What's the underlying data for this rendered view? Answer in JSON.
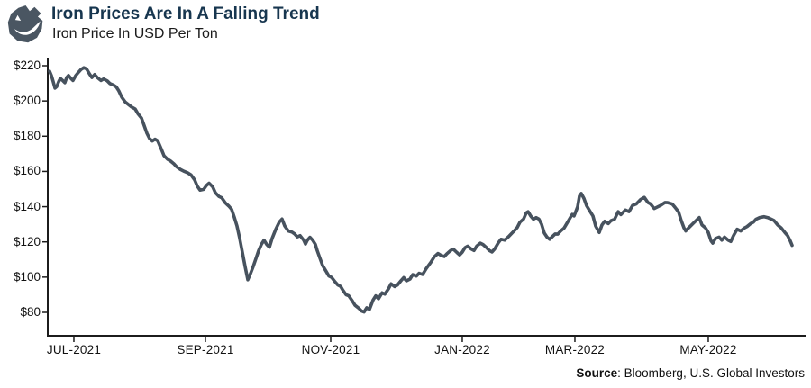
{
  "header": {
    "title": "Iron Prices Are In A Falling Trend",
    "subtitle": "Iron Price In USD Per Ton",
    "icon": "ore-rock-icon"
  },
  "source": {
    "label": "Source",
    "text": ": Bloomberg, U.S. Global Investors"
  },
  "colors": {
    "title_navy": "#17364f",
    "line_slate": "#47525e",
    "axis_black": "#1c1c1c",
    "icon_slate": "#4a5662"
  },
  "chart_data": {
    "type": "line",
    "title": "Iron Prices Are In A Falling Trend",
    "subtitle": "Iron Price In USD Per Ton",
    "ylabel": "Iron Price In USD Per Ton",
    "ylim": [
      80,
      220
    ],
    "grid": false,
    "legend": false,
    "y_ticks": [
      {
        "label": "$220",
        "value": 220
      },
      {
        "label": "$200",
        "value": 200
      },
      {
        "label": "$180",
        "value": 180
      },
      {
        "label": "$160",
        "value": 160
      },
      {
        "label": "$140",
        "value": 140
      },
      {
        "label": "$120",
        "value": 120
      },
      {
        "label": "$100",
        "value": 100
      },
      {
        "label": "$80",
        "value": 80
      }
    ],
    "x_ticks": [
      {
        "label": "JUL-2021",
        "t": 0.0345
      },
      {
        "label": "SEP-2021",
        "t": 0.2083
      },
      {
        "label": "NOV-2021",
        "t": 0.3738
      },
      {
        "label": "JAN-2022",
        "t": 0.5476
      },
      {
        "label": "MAR-2022",
        "t": 0.6964
      },
      {
        "label": "MAY-2022",
        "t": 0.8726
      }
    ],
    "series": [
      {
        "name": "Iron price (USD per ton)",
        "color": "#47525e",
        "points": [
          [
            0.0024,
            216.9
          ],
          [
            0.0048,
            214.5
          ],
          [
            0.0071,
            211
          ],
          [
            0.0095,
            207.3
          ],
          [
            0.0119,
            208.2
          ],
          [
            0.0143,
            210.8
          ],
          [
            0.0167,
            212.8
          ],
          [
            0.0202,
            211.4
          ],
          [
            0.0226,
            210.4
          ],
          [
            0.025,
            213.3
          ],
          [
            0.0274,
            214.5
          ],
          [
            0.031,
            212.6
          ],
          [
            0.0333,
            211.6
          ],
          [
            0.0369,
            214.4
          ],
          [
            0.0405,
            216.2
          ],
          [
            0.044,
            217.9
          ],
          [
            0.0476,
            218.9
          ],
          [
            0.0512,
            218.2
          ],
          [
            0.0548,
            215.6
          ],
          [
            0.0583,
            213.3
          ],
          [
            0.0619,
            215
          ],
          [
            0.0655,
            213.3
          ],
          [
            0.0702,
            211.6
          ],
          [
            0.0738,
            212.5
          ],
          [
            0.0786,
            211.4
          ],
          [
            0.0821,
            209.9
          ],
          [
            0.0869,
            209
          ],
          [
            0.0905,
            208
          ],
          [
            0.094,
            205.6
          ],
          [
            0.0976,
            202.2
          ],
          [
            0.1024,
            199.4
          ],
          [
            0.106,
            198.2
          ],
          [
            0.1107,
            196.6
          ],
          [
            0.1155,
            195.4
          ],
          [
            0.119,
            192.8
          ],
          [
            0.1238,
            190.3
          ],
          [
            0.1274,
            186
          ],
          [
            0.131,
            181.7
          ],
          [
            0.1345,
            178.6
          ],
          [
            0.1381,
            177.3
          ],
          [
            0.1417,
            178.3
          ],
          [
            0.1452,
            177.4
          ],
          [
            0.15,
            172.7
          ],
          [
            0.1536,
            168.9
          ],
          [
            0.1583,
            166.9
          ],
          [
            0.1619,
            166
          ],
          [
            0.1667,
            164.3
          ],
          [
            0.1702,
            162.6
          ],
          [
            0.175,
            161.2
          ],
          [
            0.1798,
            160.1
          ],
          [
            0.1845,
            159.3
          ],
          [
            0.1893,
            158
          ],
          [
            0.194,
            155.2
          ],
          [
            0.1976,
            151.6
          ],
          [
            0.2012,
            149.4
          ],
          [
            0.206,
            149.8
          ],
          [
            0.2095,
            152
          ],
          [
            0.2131,
            153.3
          ],
          [
            0.2179,
            151.3
          ],
          [
            0.2214,
            147.9
          ],
          [
            0.2262,
            145.8
          ],
          [
            0.2298,
            145.1
          ],
          [
            0.2345,
            142.2
          ],
          [
            0.2393,
            140.3
          ],
          [
            0.2429,
            138.5
          ],
          [
            0.2464,
            134
          ],
          [
            0.25,
            129
          ],
          [
            0.2536,
            122
          ],
          [
            0.2571,
            114
          ],
          [
            0.2607,
            106
          ],
          [
            0.2643,
            98.5
          ],
          [
            0.2679,
            102
          ],
          [
            0.2714,
            106
          ],
          [
            0.275,
            110.5
          ],
          [
            0.2786,
            115
          ],
          [
            0.2821,
            118.5
          ],
          [
            0.2857,
            121
          ],
          [
            0.2893,
            118.5
          ],
          [
            0.2929,
            117
          ],
          [
            0.2964,
            122
          ],
          [
            0.3012,
            127.1
          ],
          [
            0.306,
            131.3
          ],
          [
            0.3095,
            133
          ],
          [
            0.3131,
            129
          ],
          [
            0.3179,
            126.2
          ],
          [
            0.3226,
            125.6
          ],
          [
            0.3262,
            124.5
          ],
          [
            0.3298,
            122.8
          ],
          [
            0.3333,
            123.6
          ],
          [
            0.3381,
            121
          ],
          [
            0.3405,
            118.8
          ],
          [
            0.3429,
            120.9
          ],
          [
            0.3464,
            122.6
          ],
          [
            0.35,
            121
          ],
          [
            0.3536,
            118.5
          ],
          [
            0.356,
            115.1
          ],
          [
            0.3595,
            110.8
          ],
          [
            0.3631,
            106.6
          ],
          [
            0.3679,
            103.2
          ],
          [
            0.3714,
            100.6
          ],
          [
            0.375,
            99.8
          ],
          [
            0.3798,
            97.2
          ],
          [
            0.3833,
            95.5
          ],
          [
            0.3869,
            94.7
          ],
          [
            0.3893,
            93
          ],
          [
            0.394,
            90
          ],
          [
            0.3976,
            89.4
          ],
          [
            0.4024,
            86.5
          ],
          [
            0.406,
            84
          ],
          [
            0.4107,
            82.4
          ],
          [
            0.4143,
            80.8
          ],
          [
            0.4179,
            80.2
          ],
          [
            0.4214,
            82.6
          ],
          [
            0.425,
            81.7
          ],
          [
            0.4298,
            87
          ],
          [
            0.4333,
            89.4
          ],
          [
            0.4369,
            87.7
          ],
          [
            0.4417,
            91.1
          ],
          [
            0.4452,
            90.3
          ],
          [
            0.45,
            93.3
          ],
          [
            0.4536,
            96.2
          ],
          [
            0.4583,
            94.6
          ],
          [
            0.4619,
            95.5
          ],
          [
            0.4667,
            98
          ],
          [
            0.4702,
            99.7
          ],
          [
            0.4738,
            97.9
          ],
          [
            0.4786,
            98.9
          ],
          [
            0.4821,
            101.4
          ],
          [
            0.4869,
            100.6
          ],
          [
            0.4905,
            102.2
          ],
          [
            0.4952,
            101.5
          ],
          [
            0.5,
            104.9
          ],
          [
            0.506,
            108.3
          ],
          [
            0.5107,
            111.6
          ],
          [
            0.5155,
            113.4
          ],
          [
            0.519,
            112.5
          ],
          [
            0.5238,
            111.7
          ],
          [
            0.5274,
            113.3
          ],
          [
            0.5321,
            115.1
          ],
          [
            0.5357,
            115.9
          ],
          [
            0.5405,
            114
          ],
          [
            0.544,
            112.6
          ],
          [
            0.5476,
            114.2
          ],
          [
            0.5512,
            116.7
          ],
          [
            0.5548,
            117.6
          ],
          [
            0.5595,
            115.9
          ],
          [
            0.5631,
            115.1
          ],
          [
            0.5667,
            117.6
          ],
          [
            0.5714,
            119.3
          ],
          [
            0.575,
            118.5
          ],
          [
            0.5798,
            116.7
          ],
          [
            0.5833,
            115.1
          ],
          [
            0.5869,
            114.3
          ],
          [
            0.5905,
            116
          ],
          [
            0.5952,
            119.5
          ],
          [
            0.5988,
            121.5
          ],
          [
            0.6036,
            121
          ],
          [
            0.6083,
            122.8
          ],
          [
            0.6119,
            124.4
          ],
          [
            0.6167,
            126.5
          ],
          [
            0.6202,
            128.2
          ],
          [
            0.6238,
            131.2
          ],
          [
            0.6286,
            133
          ],
          [
            0.6321,
            136.5
          ],
          [
            0.6345,
            137.2
          ],
          [
            0.6381,
            134.6
          ],
          [
            0.6417,
            132.9
          ],
          [
            0.6452,
            133.8
          ],
          [
            0.6488,
            133
          ],
          [
            0.6524,
            130
          ],
          [
            0.656,
            125
          ],
          [
            0.6595,
            122.7
          ],
          [
            0.6631,
            121.5
          ],
          [
            0.6667,
            123
          ],
          [
            0.6702,
            124.5
          ],
          [
            0.6738,
            124.4
          ],
          [
            0.6774,
            126.1
          ],
          [
            0.6821,
            127.9
          ],
          [
            0.6869,
            131.3
          ],
          [
            0.6905,
            133.9
          ],
          [
            0.6929,
            135.6
          ],
          [
            0.6952,
            134.7
          ],
          [
            0.6976,
            137.3
          ],
          [
            0.7,
            140
          ],
          [
            0.7024,
            146
          ],
          [
            0.7048,
            147.5
          ],
          [
            0.7083,
            144.7
          ],
          [
            0.7119,
            140.5
          ],
          [
            0.7155,
            138
          ],
          [
            0.7202,
            134.7
          ],
          [
            0.7238,
            129
          ],
          [
            0.7286,
            125.3
          ],
          [
            0.7321,
            129.6
          ],
          [
            0.7357,
            131.7
          ],
          [
            0.7405,
            130.4
          ],
          [
            0.744,
            132
          ],
          [
            0.7488,
            132.9
          ],
          [
            0.7536,
            137.2
          ],
          [
            0.7571,
            135.5
          ],
          [
            0.7631,
            138.1
          ],
          [
            0.7679,
            137.2
          ],
          [
            0.7726,
            140.7
          ],
          [
            0.7774,
            141.5
          ],
          [
            0.7833,
            144.1
          ],
          [
            0.7881,
            145.3
          ],
          [
            0.7929,
            142.4
          ],
          [
            0.7964,
            141.5
          ],
          [
            0.8012,
            138.9
          ],
          [
            0.8048,
            139.7
          ],
          [
            0.8095,
            140.7
          ],
          [
            0.8155,
            142.4
          ],
          [
            0.819,
            142.3
          ],
          [
            0.825,
            141.5
          ],
          [
            0.8286,
            139.7
          ],
          [
            0.8333,
            137
          ],
          [
            0.8369,
            132.1
          ],
          [
            0.8405,
            128
          ],
          [
            0.8429,
            126.2
          ],
          [
            0.8464,
            127.9
          ],
          [
            0.8524,
            130.4
          ],
          [
            0.8583,
            132.9
          ],
          [
            0.8607,
            133.8
          ],
          [
            0.8643,
            129.6
          ],
          [
            0.869,
            127.9
          ],
          [
            0.8726,
            125.3
          ],
          [
            0.8762,
            120.6
          ],
          [
            0.8786,
            119.3
          ],
          [
            0.8821,
            121.9
          ],
          [
            0.8869,
            122.7
          ],
          [
            0.8905,
            121
          ],
          [
            0.894,
            122.7
          ],
          [
            0.8988,
            121
          ],
          [
            0.9024,
            120.2
          ],
          [
            0.906,
            123.6
          ],
          [
            0.9107,
            127.2
          ],
          [
            0.9155,
            126.2
          ],
          [
            0.9202,
            127.9
          ],
          [
            0.9238,
            128.7
          ],
          [
            0.9286,
            130.4
          ],
          [
            0.9321,
            131.2
          ],
          [
            0.9357,
            132.9
          ],
          [
            0.9405,
            133.8
          ],
          [
            0.9464,
            134.3
          ],
          [
            0.9512,
            133.8
          ],
          [
            0.956,
            132.9
          ],
          [
            0.9595,
            132.1
          ],
          [
            0.9643,
            129.6
          ],
          [
            0.969,
            127.9
          ],
          [
            0.9738,
            125.3
          ],
          [
            0.9774,
            123.6
          ],
          [
            0.981,
            120.5
          ],
          [
            0.9833,
            118
          ]
        ]
      }
    ]
  }
}
